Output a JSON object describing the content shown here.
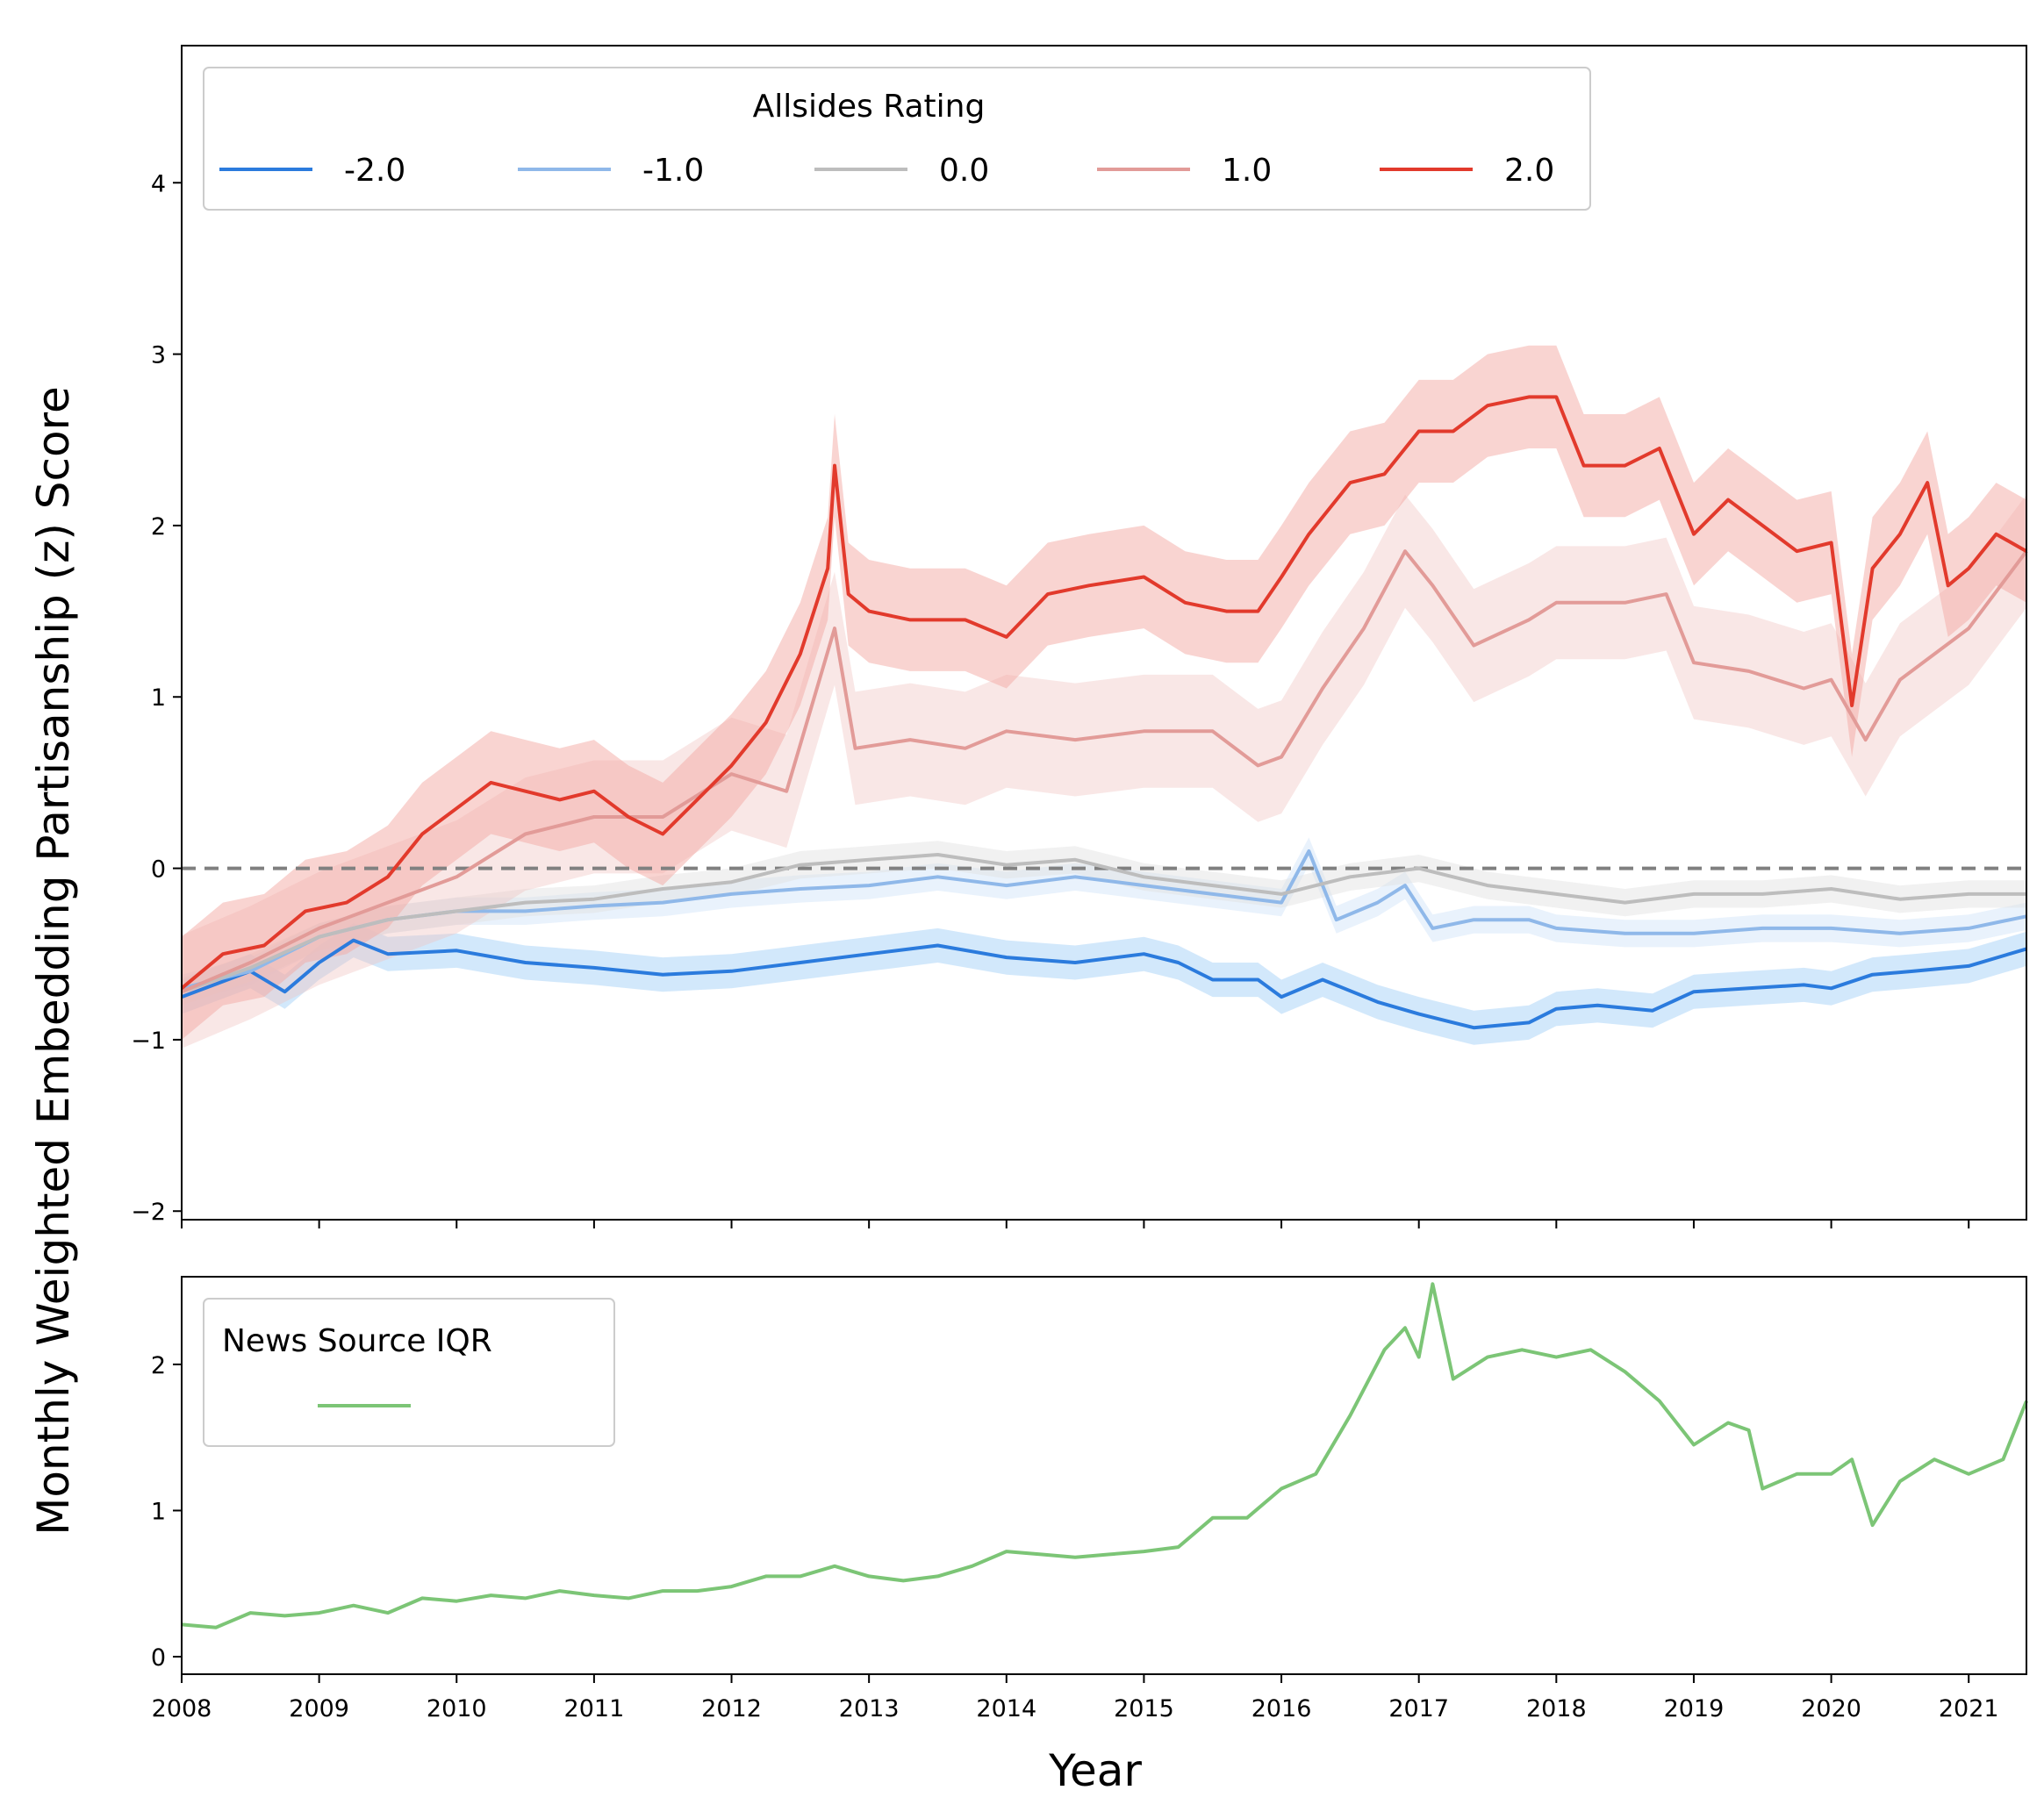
{
  "chart_data": [
    {
      "type": "line",
      "ylabel": "Monthly Weighted Embedding Partisanship (z) Score",
      "xlim": [
        2008,
        2021.42
      ],
      "ylim": [
        -2.05,
        4.8
      ],
      "x_ticks": [
        2008,
        2009,
        2010,
        2011,
        2012,
        2013,
        2014,
        2015,
        2016,
        2017,
        2018,
        2019,
        2020,
        2021
      ],
      "y_ticks": [
        -2,
        -1,
        0,
        1,
        2,
        3,
        4
      ],
      "y_tick_labels": [
        "−2",
        "−1",
        "0",
        "1",
        "2",
        "3",
        "4"
      ],
      "reference_line": {
        "y": 0,
        "style": "dashed",
        "color": "#808080"
      },
      "legend": {
        "title": "Allsides Rating",
        "placement": "top-left",
        "entries": [
          "-2.0",
          "-1.0",
          "0.0",
          "1.0",
          "2.0"
        ]
      },
      "series": [
        {
          "name": "-2.0",
          "color": "#2b7bdd",
          "band_color": "#9ccbf7",
          "band_opacity": 0.45,
          "band_halfwidth": 0.1,
          "x": [
            2008.0,
            2008.5,
            2008.75,
            2009.0,
            2009.25,
            2009.5,
            2010.0,
            2010.5,
            2011.0,
            2011.5,
            2012.0,
            2012.5,
            2013.0,
            2013.5,
            2014.0,
            2014.5,
            2015.0,
            2015.25,
            2015.5,
            2015.83,
            2016.0,
            2016.3,
            2016.7,
            2017.0,
            2017.4,
            2017.8,
            2018.0,
            2018.3,
            2018.7,
            2019.0,
            2019.4,
            2019.8,
            2020.0,
            2020.3,
            2020.6,
            2021.0,
            2021.42
          ],
          "y": [
            -0.75,
            -0.6,
            -0.72,
            -0.55,
            -0.42,
            -0.5,
            -0.48,
            -0.55,
            -0.58,
            -0.62,
            -0.6,
            -0.55,
            -0.5,
            -0.45,
            -0.52,
            -0.55,
            -0.5,
            -0.55,
            -0.65,
            -0.65,
            -0.75,
            -0.65,
            -0.78,
            -0.85,
            -0.93,
            -0.9,
            -0.82,
            -0.8,
            -0.83,
            -0.72,
            -0.7,
            -0.68,
            -0.7,
            -0.62,
            -0.6,
            -0.57,
            -0.47
          ]
        },
        {
          "name": "-1.0",
          "color": "#8fb8e9",
          "band_color": "#cfe3f9",
          "band_opacity": 0.45,
          "band_halfwidth": 0.08,
          "x": [
            2008.0,
            2008.5,
            2009.0,
            2009.5,
            2010.0,
            2010.5,
            2011.0,
            2011.5,
            2012.0,
            2012.5,
            2013.0,
            2013.5,
            2014.0,
            2014.5,
            2015.0,
            2015.5,
            2016.0,
            2016.2,
            2016.4,
            2016.7,
            2016.9,
            2017.1,
            2017.4,
            2017.8,
            2018.0,
            2018.5,
            2019.0,
            2019.5,
            2020.0,
            2020.5,
            2021.0,
            2021.42
          ],
          "y": [
            -0.7,
            -0.6,
            -0.4,
            -0.3,
            -0.25,
            -0.25,
            -0.22,
            -0.2,
            -0.15,
            -0.12,
            -0.1,
            -0.05,
            -0.1,
            -0.05,
            -0.1,
            -0.15,
            -0.2,
            0.1,
            -0.3,
            -0.2,
            -0.1,
            -0.35,
            -0.3,
            -0.3,
            -0.35,
            -0.38,
            -0.38,
            -0.35,
            -0.35,
            -0.38,
            -0.35,
            -0.28
          ]
        },
        {
          "name": "0.0",
          "color": "#bdbdbd",
          "band_color": "#e0e0e0",
          "band_opacity": 0.45,
          "band_halfwidth": 0.08,
          "x": [
            2008.0,
            2008.5,
            2009.0,
            2009.5,
            2010.0,
            2010.5,
            2011.0,
            2011.5,
            2012.0,
            2012.5,
            2013.0,
            2013.5,
            2014.0,
            2014.5,
            2015.0,
            2015.5,
            2016.0,
            2016.5,
            2017.0,
            2017.5,
            2018.0,
            2018.5,
            2019.0,
            2019.5,
            2020.0,
            2020.5,
            2021.0,
            2021.42
          ],
          "y": [
            -0.72,
            -0.58,
            -0.4,
            -0.3,
            -0.25,
            -0.2,
            -0.18,
            -0.12,
            -0.08,
            0.02,
            0.05,
            0.08,
            0.02,
            0.05,
            -0.05,
            -0.1,
            -0.15,
            -0.05,
            0.0,
            -0.1,
            -0.15,
            -0.2,
            -0.15,
            -0.15,
            -0.12,
            -0.18,
            -0.15,
            -0.15
          ]
        },
        {
          "name": "1.0",
          "color": "#e29b98",
          "band_color": "#f0c3c1",
          "band_opacity": 0.4,
          "band_halfwidth": 0.33,
          "x": [
            2008.0,
            2008.5,
            2009.0,
            2009.5,
            2010.0,
            2010.5,
            2011.0,
            2011.5,
            2012.0,
            2012.4,
            2012.75,
            2012.9,
            2013.3,
            2013.7,
            2014.0,
            2014.5,
            2015.0,
            2015.5,
            2015.83,
            2016.0,
            2016.3,
            2016.6,
            2016.9,
            2017.1,
            2017.4,
            2017.8,
            2018.0,
            2018.5,
            2018.8,
            2019.0,
            2019.4,
            2019.8,
            2020.0,
            2020.25,
            2020.5,
            2021.0,
            2021.42
          ],
          "y": [
            -0.72,
            -0.55,
            -0.35,
            -0.2,
            -0.05,
            0.2,
            0.3,
            0.3,
            0.55,
            0.45,
            1.4,
            0.7,
            0.75,
            0.7,
            0.8,
            0.75,
            0.8,
            0.8,
            0.6,
            0.65,
            1.05,
            1.4,
            1.85,
            1.65,
            1.3,
            1.45,
            1.55,
            1.55,
            1.6,
            1.2,
            1.15,
            1.05,
            1.1,
            0.75,
            1.1,
            1.4,
            1.85
          ]
        },
        {
          "name": "2.0",
          "color": "#e23a2c",
          "band_color": "#f4aaa4",
          "band_opacity": 0.5,
          "band_halfwidth": 0.3,
          "x": [
            2008.0,
            2008.3,
            2008.6,
            2008.9,
            2009.2,
            2009.5,
            2009.75,
            2010.0,
            2010.25,
            2010.5,
            2010.75,
            2011.0,
            2011.25,
            2011.5,
            2011.75,
            2012.0,
            2012.25,
            2012.5,
            2012.7,
            2012.75,
            2012.85,
            2013.0,
            2013.3,
            2013.7,
            2014.0,
            2014.3,
            2014.6,
            2015.0,
            2015.3,
            2015.6,
            2015.83,
            2016.0,
            2016.2,
            2016.5,
            2016.75,
            2017.0,
            2017.25,
            2017.5,
            2017.8,
            2018.0,
            2018.2,
            2018.5,
            2018.75,
            2019.0,
            2019.25,
            2019.5,
            2019.75,
            2020.0,
            2020.15,
            2020.3,
            2020.5,
            2020.7,
            2020.85,
            2021.0,
            2021.2,
            2021.42
          ],
          "y": [
            -0.7,
            -0.5,
            -0.45,
            -0.25,
            -0.2,
            -0.05,
            0.2,
            0.35,
            0.5,
            0.45,
            0.4,
            0.45,
            0.3,
            0.2,
            0.4,
            0.6,
            0.85,
            1.25,
            1.75,
            2.35,
            1.6,
            1.5,
            1.45,
            1.45,
            1.35,
            1.6,
            1.65,
            1.7,
            1.55,
            1.5,
            1.5,
            1.7,
            1.95,
            2.25,
            2.3,
            2.55,
            2.55,
            2.7,
            2.75,
            2.75,
            2.35,
            2.35,
            2.45,
            1.95,
            2.15,
            2.0,
            1.85,
            1.9,
            0.95,
            1.75,
            1.95,
            2.25,
            1.65,
            1.75,
            1.95,
            1.85
          ]
        }
      ]
    },
    {
      "type": "line",
      "xlabel": "Year",
      "xlim": [
        2008,
        2021.42
      ],
      "ylim": [
        -0.12,
        2.6
      ],
      "x_ticks": [
        2008,
        2009,
        2010,
        2011,
        2012,
        2013,
        2014,
        2015,
        2016,
        2017,
        2018,
        2019,
        2020,
        2021
      ],
      "y_ticks": [
        0,
        1,
        2
      ],
      "legend": {
        "title": "News Source IQR",
        "placement": "top-left"
      },
      "series": [
        {
          "color": "#7cc576",
          "x": [
            2008.0,
            2008.25,
            2008.5,
            2008.75,
            2009.0,
            2009.25,
            2009.5,
            2009.75,
            2010.0,
            2010.25,
            2010.5,
            2010.75,
            2011.0,
            2011.25,
            2011.5,
            2011.75,
            2012.0,
            2012.25,
            2012.5,
            2012.75,
            2013.0,
            2013.25,
            2013.5,
            2013.75,
            2014.0,
            2014.25,
            2014.5,
            2014.75,
            2015.0,
            2015.25,
            2015.5,
            2015.75,
            2016.0,
            2016.25,
            2016.5,
            2016.75,
            2016.9,
            2017.0,
            2017.1,
            2017.25,
            2017.5,
            2017.75,
            2018.0,
            2018.25,
            2018.5,
            2018.75,
            2019.0,
            2019.25,
            2019.4,
            2019.5,
            2019.75,
            2020.0,
            2020.15,
            2020.3,
            2020.5,
            2020.75,
            2021.0,
            2021.25,
            2021.42
          ],
          "y": [
            0.22,
            0.2,
            0.3,
            0.28,
            0.3,
            0.35,
            0.3,
            0.4,
            0.38,
            0.42,
            0.4,
            0.45,
            0.42,
            0.4,
            0.45,
            0.45,
            0.48,
            0.55,
            0.55,
            0.62,
            0.55,
            0.52,
            0.55,
            0.62,
            0.72,
            0.7,
            0.68,
            0.7,
            0.72,
            0.75,
            0.95,
            0.95,
            1.15,
            1.25,
            1.65,
            2.1,
            2.25,
            2.05,
            2.55,
            1.9,
            2.05,
            2.1,
            2.05,
            2.1,
            1.95,
            1.75,
            1.45,
            1.6,
            1.55,
            1.15,
            1.25,
            1.25,
            1.35,
            0.9,
            1.2,
            1.35,
            1.25,
            1.35,
            1.75
          ]
        }
      ]
    }
  ]
}
